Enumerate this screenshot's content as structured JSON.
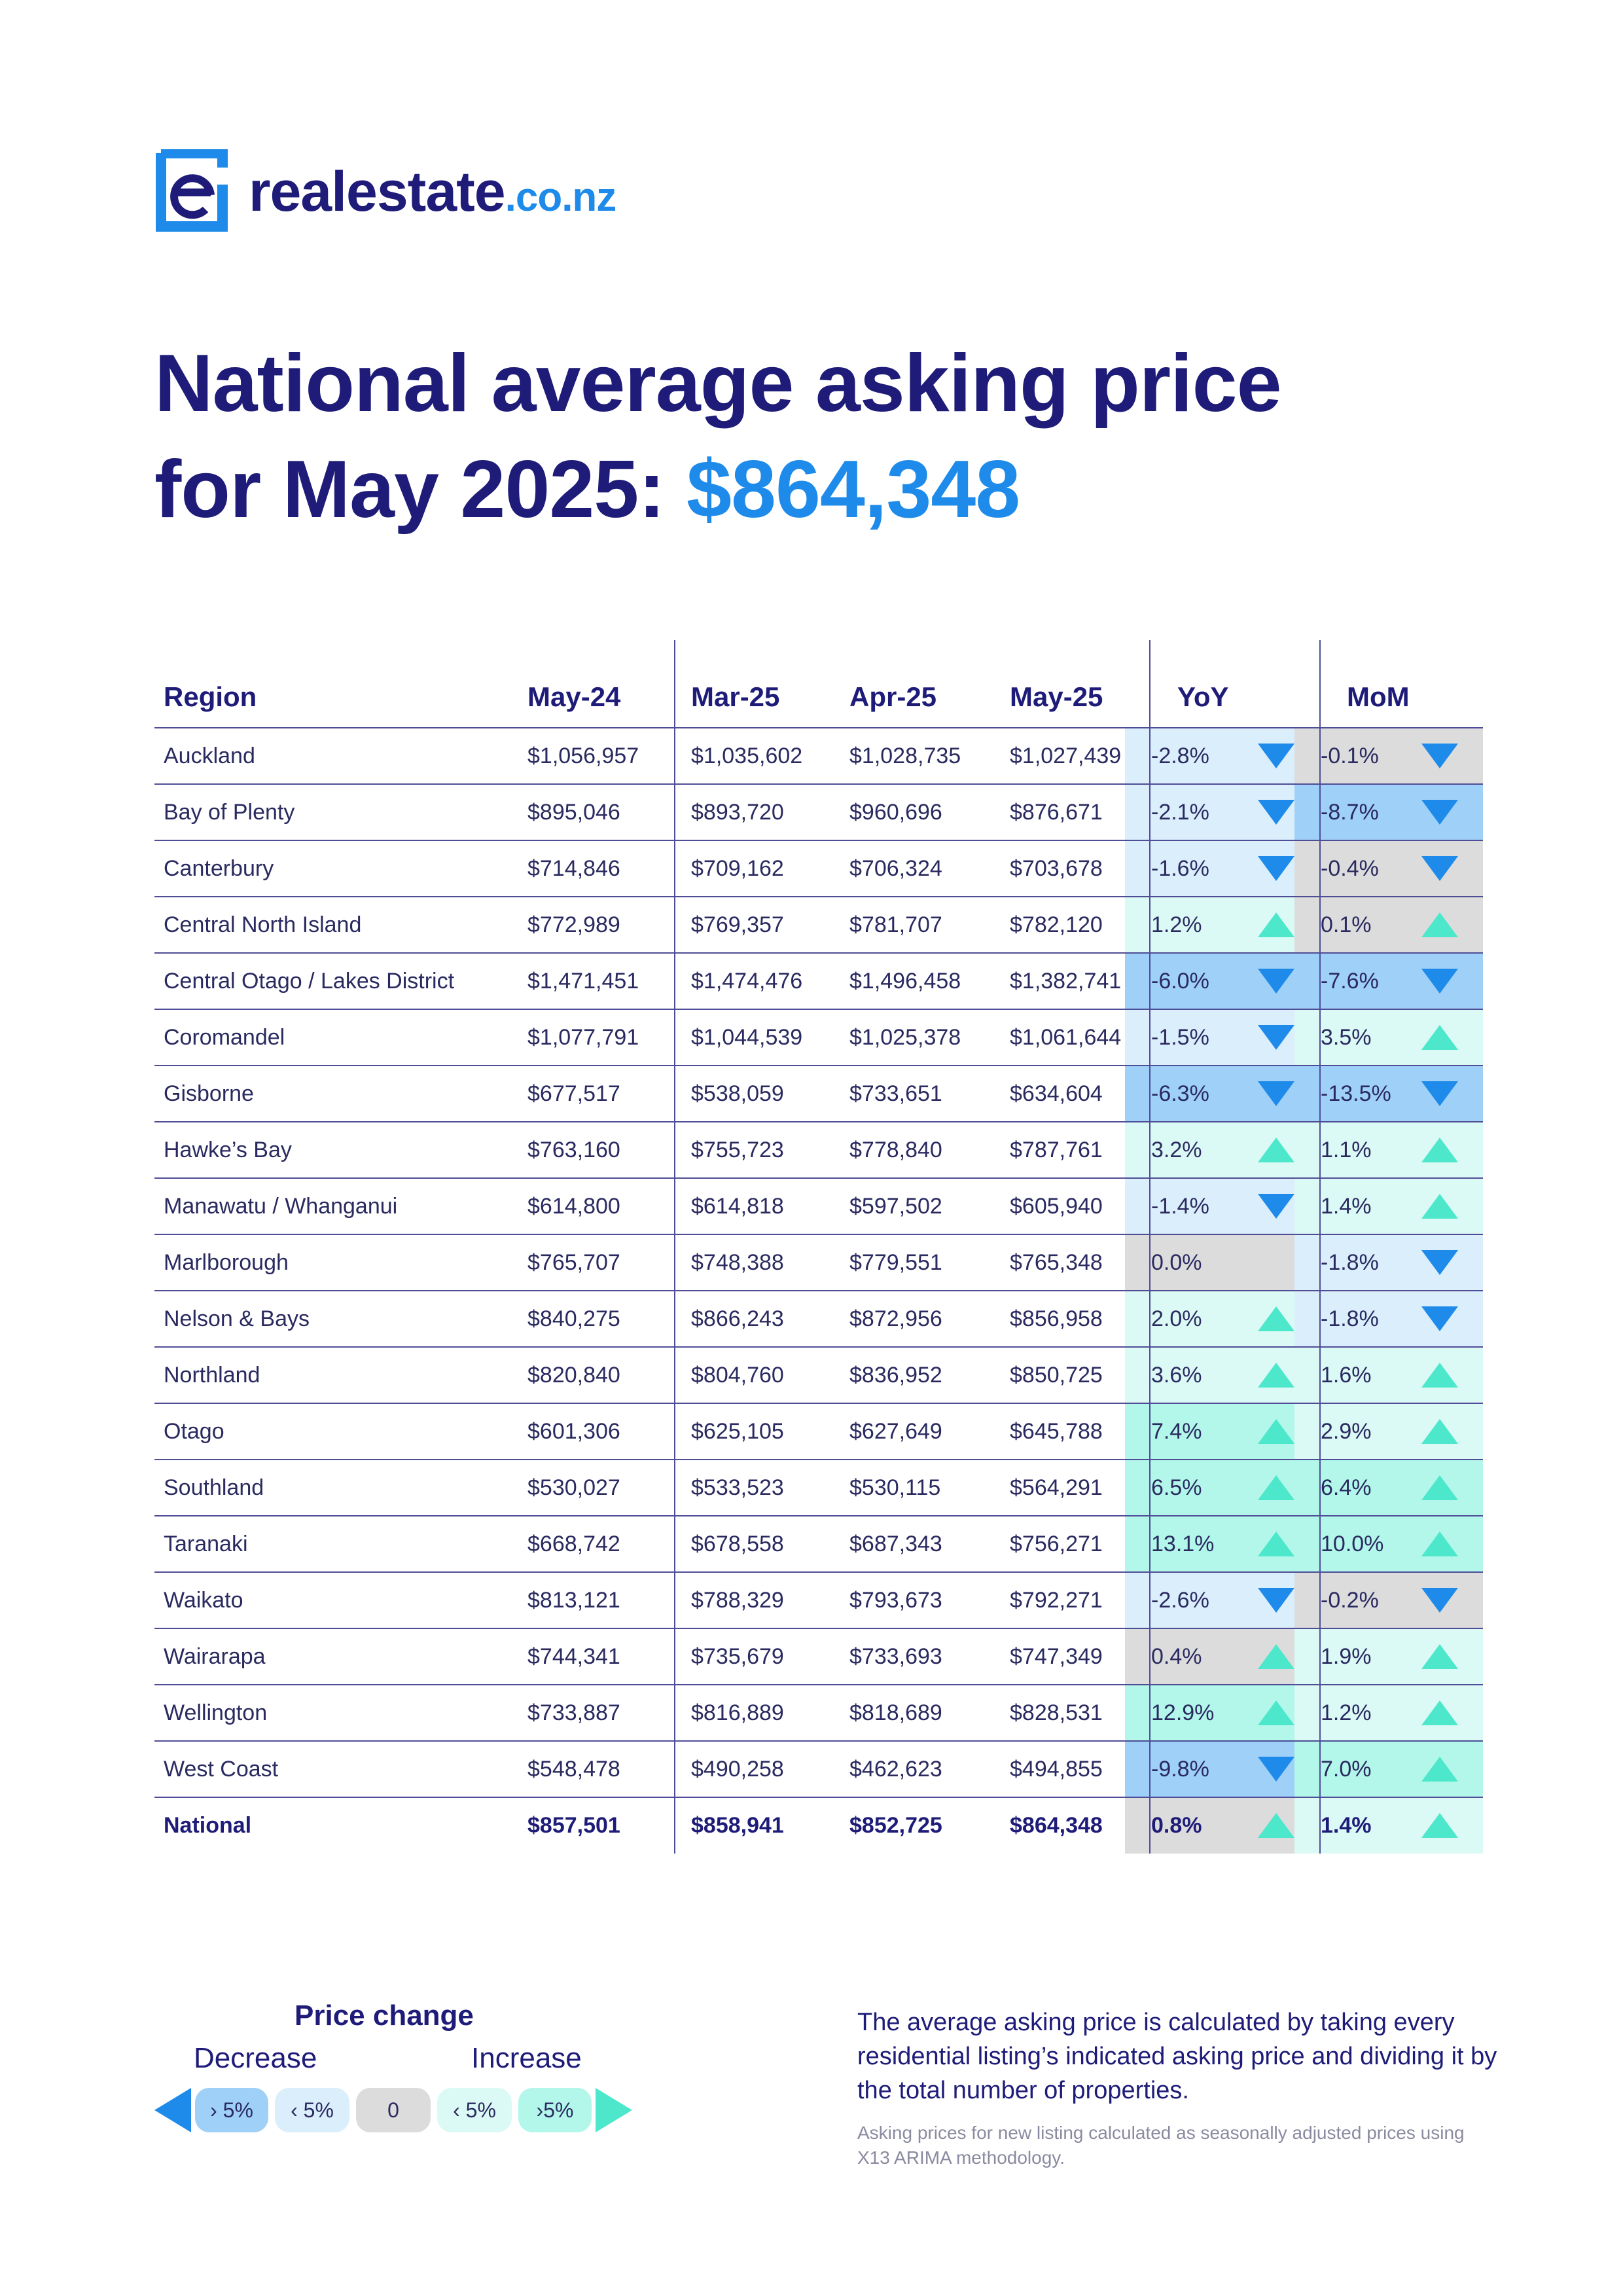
{
  "brand": {
    "name": "realestate",
    "tld": ".co.nz"
  },
  "headline": {
    "line1": "National average asking price",
    "line2": "for May 2025:",
    "value": "$864,348"
  },
  "colors": {
    "navy": "#1e1c78",
    "brand_blue": "#1e8bea",
    "strong_decrease": "#9fd0f8",
    "decrease": "#dbeefc",
    "neutral": "#dcdcdc",
    "increase": "#dcfaf5",
    "strong_increase": "#b2f7ea",
    "arrow_down": "#1e8bea",
    "arrow_up": "#4de8cc"
  },
  "table": {
    "headers": [
      "Region",
      "May-24",
      "Mar-25",
      "Apr-25",
      "May-25",
      "YoY",
      "MoM"
    ],
    "rows": [
      {
        "region": "Auckland",
        "may24": "$1,056,957",
        "mar25": "$1,035,602",
        "apr25": "$1,028,735",
        "may25": "$1,027,439",
        "yoy": "-2.8%",
        "mom": "-0.1%"
      },
      {
        "region": "Bay of Plenty",
        "may24": "$895,046",
        "mar25": "$893,720",
        "apr25": "$960,696",
        "may25": "$876,671",
        "yoy": "-2.1%",
        "mom": "-8.7%"
      },
      {
        "region": "Canterbury",
        "may24": "$714,846",
        "mar25": "$709,162",
        "apr25": "$706,324",
        "may25": "$703,678",
        "yoy": "-1.6%",
        "mom": "-0.4%"
      },
      {
        "region": "Central North Island",
        "may24": "$772,989",
        "mar25": "$769,357",
        "apr25": "$781,707",
        "may25": "$782,120",
        "yoy": "1.2%",
        "mom": "0.1%"
      },
      {
        "region": "Central Otago / Lakes District",
        "may24": "$1,471,451",
        "mar25": "$1,474,476",
        "apr25": "$1,496,458",
        "may25": "$1,382,741",
        "yoy": "-6.0%",
        "mom": "-7.6%"
      },
      {
        "region": "Coromandel",
        "may24": "$1,077,791",
        "mar25": "$1,044,539",
        "apr25": "$1,025,378",
        "may25": "$1,061,644",
        "yoy": "-1.5%",
        "mom": "3.5%"
      },
      {
        "region": "Gisborne",
        "may24": "$677,517",
        "mar25": "$538,059",
        "apr25": "$733,651",
        "may25": "$634,604",
        "yoy": "-6.3%",
        "mom": "-13.5%"
      },
      {
        "region": "Hawke’s Bay",
        "may24": "$763,160",
        "mar25": "$755,723",
        "apr25": "$778,840",
        "may25": "$787,761",
        "yoy": "3.2%",
        "mom": "1.1%"
      },
      {
        "region": "Manawatu / Whanganui",
        "may24": "$614,800",
        "mar25": "$614,818",
        "apr25": "$597,502",
        "may25": "$605,940",
        "yoy": "-1.4%",
        "mom": "1.4%"
      },
      {
        "region": "Marlborough",
        "may24": "$765,707",
        "mar25": "$748,388",
        "apr25": "$779,551",
        "may25": "$765,348",
        "yoy": "0.0%",
        "mom": "-1.8%"
      },
      {
        "region": "Nelson & Bays",
        "may24": "$840,275",
        "mar25": "$866,243",
        "apr25": "$872,956",
        "may25": "$856,958",
        "yoy": "2.0%",
        "mom": "-1.8%"
      },
      {
        "region": "Northland",
        "may24": "$820,840",
        "mar25": "$804,760",
        "apr25": "$836,952",
        "may25": "$850,725",
        "yoy": "3.6%",
        "mom": "1.6%"
      },
      {
        "region": "Otago",
        "may24": "$601,306",
        "mar25": "$625,105",
        "apr25": "$627,649",
        "may25": "$645,788",
        "yoy": "7.4%",
        "mom": "2.9%"
      },
      {
        "region": "Southland",
        "may24": "$530,027",
        "mar25": "$533,523",
        "apr25": "$530,115",
        "may25": "$564,291",
        "yoy": "6.5%",
        "mom": "6.4%"
      },
      {
        "region": "Taranaki",
        "may24": "$668,742",
        "mar25": "$678,558",
        "apr25": "$687,343",
        "may25": "$756,271",
        "yoy": "13.1%",
        "mom": "10.0%"
      },
      {
        "region": "Waikato",
        "may24": "$813,121",
        "mar25": "$788,329",
        "apr25": "$793,673",
        "may25": "$792,271",
        "yoy": "-2.6%",
        "mom": "-0.2%"
      },
      {
        "region": "Wairarapa",
        "may24": "$744,341",
        "mar25": "$735,679",
        "apr25": "$733,693",
        "may25": "$747,349",
        "yoy": "0.4%",
        "mom": "1.9%"
      },
      {
        "region": "Wellington",
        "may24": "$733,887",
        "mar25": "$816,889",
        "apr25": "$818,689",
        "may25": "$828,531",
        "yoy": "12.9%",
        "mom": "1.2%"
      },
      {
        "region": "West Coast",
        "may24": "$548,478",
        "mar25": "$490,258",
        "apr25": "$462,623",
        "may25": "$494,855",
        "yoy": "-9.8%",
        "mom": "7.0%"
      },
      {
        "region": "National",
        "may24": "$857,501",
        "mar25": "$858,941",
        "apr25": "$852,725",
        "may25": "$864,348",
        "yoy": "0.8%",
        "mom": "1.4%"
      }
    ]
  },
  "legend": {
    "title": "Price change",
    "decrease": "Decrease",
    "increase": "Increase",
    "pills": [
      "› 5%",
      "‹ 5%",
      "0",
      "‹ 5%",
      "›5%"
    ]
  },
  "note": "The average asking price is calculated by taking every residential listing’s indicated asking price and dividing it by the total number of properties.",
  "footnote": "Asking prices for new listing calculated as seasonally adjusted prices using X13 ARIMA methodology."
}
